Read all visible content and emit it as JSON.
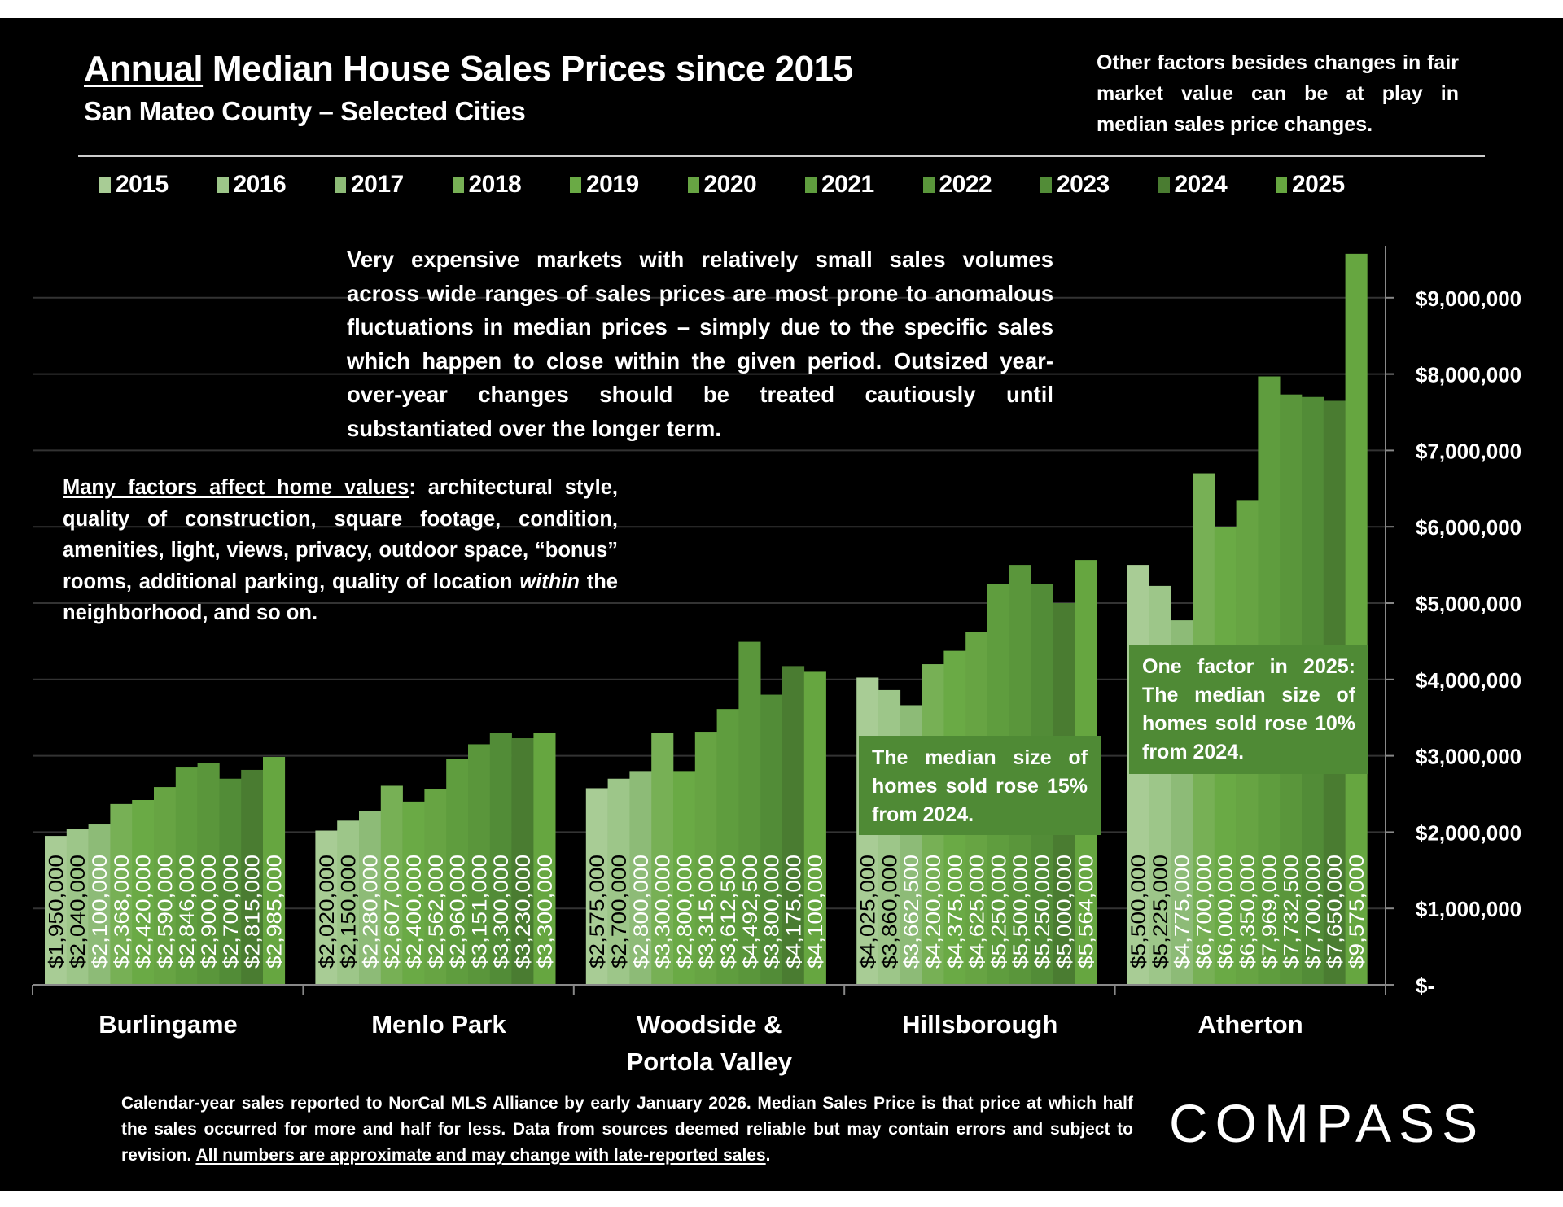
{
  "header": {
    "title_underlined": "Annual",
    "title_rest": " Median House Sales Prices since 2015",
    "subtitle": "San Mateo County – Selected Cities",
    "side_note": "Other factors besides changes in fair market value can be at play in median sales price changes."
  },
  "notes": {
    "center": "Very expensive markets with relatively small sales volumes across wide ranges of sales prices are most prone to anomalous fluctuations in median prices – simply due to the specific sales which happen to close within the given period. Outsized year-over-year changes should be treated cautiously until substantiated over the longer term.",
    "left_underlined": "Many factors affect home values",
    "left_part1": ": architectural style, quality of construction, square footage, condition, amenities, light, views, privacy, outdoor space, “bonus” rooms, additional parking, quality of location ",
    "left_italic": "within",
    "left_part2": " the neighborhood, and so on.",
    "hillsborough": "The median size of homes sold rose 15% from 2024.",
    "atherton": "One factor in 2025: The median size of homes sold rose 10% from 2024."
  },
  "footer": {
    "text": "Calendar-year sales reported to NorCal MLS Alliance by early January 2026. Median Sales Price is that price at which half the sales occurred for more and half for less. Data from sources deemed reliable but may contain errors and subject to revision.  ",
    "underlined": "All numbers are approximate and may change with late-reported sales",
    "end": "."
  },
  "logo": "COMPASS",
  "chart_data": {
    "type": "bar",
    "title": "Annual Median House Sales Prices since 2015",
    "subtitle": "San Mateo County – Selected Cities",
    "categories": [
      "Burlingame",
      "Menlo Park",
      "Woodside & Portola Valley",
      "Hillsborough",
      "Atherton"
    ],
    "category_lines": [
      [
        "Burlingame"
      ],
      [
        "Menlo Park"
      ],
      [
        "Woodside &",
        "Portola Valley"
      ],
      [
        "Hillsborough"
      ],
      [
        "Atherton"
      ]
    ],
    "series": [
      {
        "name": "2015",
        "color": "#a8cc95",
        "values": [
          1950000,
          2020000,
          2575000,
          4025000,
          5500000
        ]
      },
      {
        "name": "2016",
        "color": "#9dc689",
        "values": [
          2040000,
          2150000,
          2700000,
          3860000,
          5225000
        ]
      },
      {
        "name": "2017",
        "color": "#8dbb77",
        "values": [
          2100000,
          2280000,
          2800000,
          3662500,
          4775000
        ]
      },
      {
        "name": "2018",
        "color": "#77b055",
        "values": [
          2368000,
          2607000,
          3300000,
          4200000,
          6700000
        ]
      },
      {
        "name": "2019",
        "color": "#6aaa45",
        "values": [
          2420000,
          2400000,
          2800000,
          4375000,
          6000000
        ]
      },
      {
        "name": "2020",
        "color": "#67a443",
        "values": [
          2590000,
          2562000,
          3315000,
          4625000,
          6350000
        ]
      },
      {
        "name": "2021",
        "color": "#5f9d3e",
        "values": [
          2846000,
          2960000,
          3612500,
          5250000,
          7969000
        ]
      },
      {
        "name": "2022",
        "color": "#5a963b",
        "values": [
          2900000,
          3151000,
          4492500,
          5500000,
          7732500
        ]
      },
      {
        "name": "2023",
        "color": "#528c37",
        "values": [
          2700000,
          3300000,
          3800000,
          5250000,
          7700000
        ]
      },
      {
        "name": "2024",
        "color": "#4a7c31",
        "values": [
          2815000,
          3230000,
          4175000,
          5000000,
          7650000
        ]
      },
      {
        "name": "2025",
        "color": "#66a640",
        "values": [
          2985000,
          3300000,
          4100000,
          5564000,
          9575000
        ]
      }
    ],
    "data_labels": [
      [
        "$1,950,000",
        "$2,020,000",
        "$2,575,000",
        "$4,025,000",
        "$5,500,000"
      ],
      [
        "$2,040,000",
        "$2,150,000",
        "$2,700,000",
        "$3,860,000",
        "$5,225,000"
      ],
      [
        "$2,100,000",
        "$2,280,000",
        "$2,800,000",
        "$3,662,500",
        "$4,775,000"
      ],
      [
        "$2,368,000",
        "$2,607,000",
        "$3,300,000",
        "$4,200,000",
        "$6,700,000"
      ],
      [
        "$2,420,000",
        "$2,400,000",
        "$2,800,000",
        "$4,375,000",
        "$6,000,000"
      ],
      [
        "$2,590,000",
        "$2,562,000",
        "$3,315,000",
        "$4,625,000",
        "$6,350,000"
      ],
      [
        "$2,846,000",
        "$2,960,000",
        "$3,612,500",
        "$5,250,000",
        "$7,969,000"
      ],
      [
        "$2,900,000",
        "$3,151,000",
        "$4,492,500",
        "$5,500,000",
        "$7,732,500"
      ],
      [
        "$2,700,000",
        "$3,300,000",
        "$3,800,000",
        "$5,250,000",
        "$7,700,000"
      ],
      [
        "$2,815,000",
        "$3,230,000",
        "$4,175,000",
        "$5,000,000",
        "$7,650,000"
      ],
      [
        "$2,985,000",
        "$3,300,000",
        "$4,100,000",
        "$5,564,000",
        "$9,575,000"
      ]
    ],
    "ylim": [
      0,
      9700000
    ],
    "y_ticks": [
      0,
      1000000,
      2000000,
      3000000,
      4000000,
      5000000,
      6000000,
      7000000,
      8000000,
      9000000
    ],
    "y_tick_labels": [
      "$-",
      "$1,000,000",
      "$2,000,000",
      "$3,000,000",
      "$4,000,000",
      "$5,000,000",
      "$6,000,000",
      "$7,000,000",
      "$8,000,000",
      "$9,000,000"
    ],
    "y_axis_side": "right",
    "grid": true,
    "legend": "top",
    "background": "#000000"
  }
}
